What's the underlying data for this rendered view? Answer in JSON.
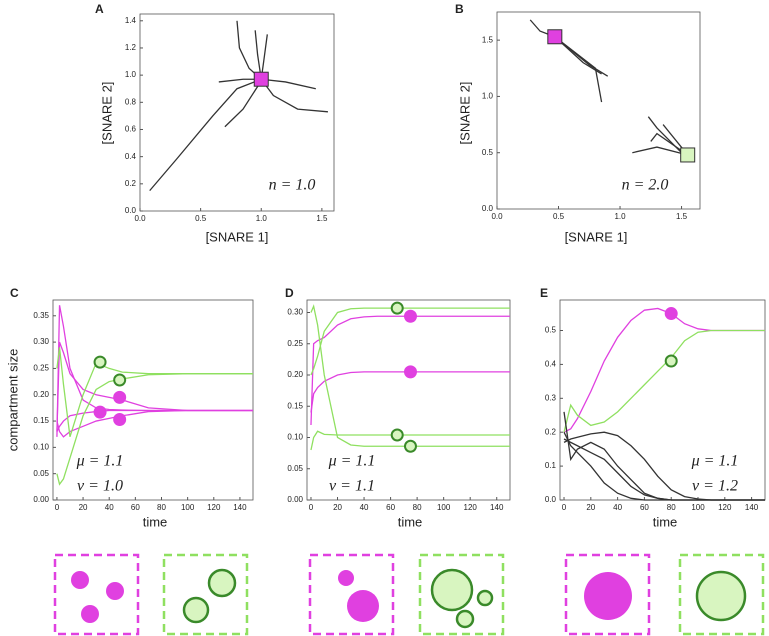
{
  "chart_data": [
    {
      "type": "line",
      "label": "A",
      "xlabel": "[SNARE 1]",
      "ylabel": "[SNARE 2]",
      "annotations": [
        "n = 1.0"
      ],
      "xlim": [
        0,
        1.6
      ],
      "ylim": [
        0,
        1.45
      ],
      "xticks": [
        {
          "value": 0,
          "label": "0.0"
        },
        0.5,
        {
          "value": 1,
          "label": "1.0"
        },
        1.5
      ],
      "yticks": [
        {
          "value": 0,
          "label": "0.0"
        },
        0.2,
        0.4,
        0.6,
        0.8,
        {
          "value": 1,
          "label": "1.0"
        },
        1.2,
        1.4
      ],
      "series": [
        {
          "color": "#333333",
          "x": [
            0.08,
            0.3,
            0.6,
            0.8,
            1.0
          ],
          "values": [
            0.15,
            0.38,
            0.7,
            0.9,
            0.97
          ]
        },
        {
          "color": "#333333",
          "x": [
            0.8,
            0.82,
            0.9,
            1.0
          ],
          "values": [
            1.4,
            1.2,
            1.05,
            0.97
          ]
        },
        {
          "color": "#333333",
          "x": [
            0.95,
            0.97,
            1.0
          ],
          "values": [
            1.33,
            1.15,
            0.97
          ]
        },
        {
          "color": "#333333",
          "x": [
            1.05,
            1.02,
            1.0
          ],
          "values": [
            1.3,
            1.1,
            0.97
          ]
        },
        {
          "color": "#333333",
          "x": [
            1.55,
            1.3,
            1.1,
            1.0
          ],
          "values": [
            0.73,
            0.75,
            0.85,
            0.97
          ]
        },
        {
          "color": "#333333",
          "x": [
            1.45,
            1.2,
            1.0
          ],
          "values": [
            0.9,
            0.95,
            0.97
          ]
        },
        {
          "color": "#333333",
          "x": [
            0.7,
            0.85,
            0.98
          ],
          "values": [
            0.62,
            0.75,
            0.93
          ]
        },
        {
          "color": "#333333",
          "x": [
            0.65,
            0.85,
            1.0
          ],
          "values": [
            0.95,
            0.97,
            0.97
          ]
        }
      ],
      "markers": [
        {
          "shape": "square",
          "fill": "#e040e0",
          "stroke": "#333333",
          "x": [
            1.0
          ],
          "values": [
            0.97
          ]
        }
      ]
    },
    {
      "type": "line",
      "label": "B",
      "xlabel": "[SNARE 1]",
      "ylabel": "[SNARE 2]",
      "annotations": [
        "n = 2.0"
      ],
      "xlim": [
        0,
        1.65
      ],
      "ylim": [
        0,
        1.75
      ],
      "xticks": [
        {
          "value": 0,
          "label": "0.0"
        },
        0.5,
        {
          "value": 1,
          "label": "1.0"
        },
        1.5
      ],
      "yticks": [
        {
          "value": 0,
          "label": "0.0"
        },
        0.5,
        {
          "value": 1,
          "label": "1.0"
        },
        1.5
      ],
      "series": [
        {
          "color": "#333333",
          "x": [
            0.27,
            0.35,
            0.47
          ],
          "values": [
            1.68,
            1.58,
            1.53
          ]
        },
        {
          "color": "#333333",
          "x": [
            0.47,
            0.7,
            0.85
          ],
          "values": [
            1.53,
            1.3,
            1.2
          ]
        },
        {
          "color": "#333333",
          "x": [
            0.47,
            0.8,
            0.85
          ],
          "values": [
            1.53,
            1.25,
            0.95
          ]
        },
        {
          "color": "#333333",
          "x": [
            0.47,
            0.75,
            0.9
          ],
          "values": [
            1.53,
            1.28,
            1.18
          ]
        },
        {
          "color": "#333333",
          "x": [
            1.23,
            1.3,
            1.5
          ],
          "values": [
            0.82,
            0.72,
            0.5
          ]
        },
        {
          "color": "#333333",
          "x": [
            1.25,
            1.3,
            1.55
          ],
          "values": [
            0.6,
            0.67,
            0.48
          ]
        },
        {
          "color": "#333333",
          "x": [
            1.1,
            1.3,
            1.55
          ],
          "values": [
            0.5,
            0.55,
            0.48
          ]
        },
        {
          "color": "#333333",
          "x": [
            1.35,
            1.55
          ],
          "values": [
            0.75,
            0.48
          ]
        }
      ],
      "markers": [
        {
          "shape": "square",
          "fill": "#e040e0",
          "stroke": "#333333",
          "x": [
            0.47
          ],
          "values": [
            1.53
          ]
        },
        {
          "shape": "square",
          "fill": "#d8f5c0",
          "stroke": "#333333",
          "x": [
            1.55
          ],
          "values": [
            0.48
          ]
        }
      ]
    },
    {
      "type": "line",
      "label": "C",
      "xlabel": "time",
      "ylabel": "compartment size",
      "annotations": [
        "μ = 1.1",
        "ν = 1.0"
      ],
      "xlim": [
        -3,
        150
      ],
      "ylim": [
        0,
        0.38
      ],
      "xticks": [
        0,
        20,
        40,
        60,
        80,
        100,
        120,
        140
      ],
      "yticks": [
        {
          "value": 0,
          "label": "0.00"
        },
        0.05,
        {
          "value": 0.1,
          "label": "0.10"
        },
        0.15,
        {
          "value": 0.2,
          "label": "0.20"
        },
        0.25,
        {
          "value": 0.3,
          "label": "0.30"
        },
        0.35
      ],
      "x": [
        0,
        2,
        5,
        10,
        20,
        30,
        40,
        50,
        70,
        100,
        150
      ],
      "series": [
        {
          "color": "#e040e0",
          "values": [
            0.12,
            0.37,
            0.33,
            0.25,
            0.19,
            0.175,
            0.172,
            0.171,
            0.17,
            0.17,
            0.17
          ]
        },
        {
          "color": "#e040e0",
          "values": [
            0.13,
            0.3,
            0.28,
            0.24,
            0.21,
            0.2,
            0.195,
            0.19,
            0.175,
            0.17,
            0.17
          ]
        },
        {
          "color": "#e040e0",
          "values": [
            0.13,
            0.14,
            0.15,
            0.16,
            0.165,
            0.168,
            0.17,
            0.17,
            0.17,
            0.17,
            0.17
          ]
        },
        {
          "color": "#e040e0",
          "values": [
            0.15,
            0.13,
            0.12,
            0.13,
            0.14,
            0.15,
            0.155,
            0.16,
            0.168,
            0.17,
            0.17
          ]
        },
        {
          "color": "#8fe060",
          "values": [
            0.25,
            0.29,
            0.22,
            0.12,
            0.2,
            0.26,
            0.25,
            0.243,
            0.24,
            0.24,
            0.24
          ]
        },
        {
          "color": "#8fe060",
          "values": [
            0.05,
            0.03,
            0.04,
            0.08,
            0.16,
            0.21,
            0.225,
            0.23,
            0.238,
            0.24,
            0.24
          ]
        }
      ],
      "markers": [
        {
          "shape": "circle",
          "fill": "#e040e0",
          "stroke": "#e040e0",
          "x": [
            33,
            48,
            48
          ],
          "values": [
            0.167,
            0.195,
            0.153
          ]
        },
        {
          "shape": "circle",
          "fill": "#d8f5c0",
          "stroke": "#3a8a2a",
          "x": [
            33,
            48
          ],
          "values": [
            0.262,
            0.228
          ]
        }
      ]
    },
    {
      "type": "line",
      "label": "D",
      "xlabel": "time",
      "annotations": [
        "μ = 1.1",
        "ν = 1.1"
      ],
      "xlim": [
        -3,
        150
      ],
      "ylim": [
        0,
        0.32
      ],
      "xticks": [
        0,
        20,
        40,
        60,
        80,
        100,
        120,
        140
      ],
      "yticks": [
        {
          "value": 0,
          "label": "0.00"
        },
        0.05,
        {
          "value": 0.1,
          "label": "0.10"
        },
        0.15,
        {
          "value": 0.2,
          "label": "0.20"
        },
        0.25,
        {
          "value": 0.3,
          "label": "0.30"
        }
      ],
      "x": [
        0,
        2,
        5,
        10,
        20,
        30,
        40,
        50,
        70,
        100,
        150
      ],
      "series": [
        {
          "color": "#e040e0",
          "values": [
            0.12,
            0.25,
            0.255,
            0.26,
            0.28,
            0.29,
            0.293,
            0.294,
            0.294,
            0.294,
            0.294
          ]
        },
        {
          "color": "#e040e0",
          "values": [
            0.14,
            0.17,
            0.18,
            0.19,
            0.2,
            0.204,
            0.205,
            0.205,
            0.205,
            0.205,
            0.205
          ]
        },
        {
          "color": "#8fe060",
          "values": [
            0.2,
            0.21,
            0.23,
            0.27,
            0.3,
            0.306,
            0.307,
            0.307,
            0.307,
            0.307,
            0.307
          ]
        },
        {
          "color": "#8fe060",
          "values": [
            0.3,
            0.31,
            0.28,
            0.2,
            0.1,
            0.088,
            0.086,
            0.086,
            0.086,
            0.086,
            0.086
          ]
        },
        {
          "color": "#8fe060",
          "values": [
            0.08,
            0.1,
            0.11,
            0.105,
            0.104,
            0.104,
            0.104,
            0.104,
            0.104,
            0.104,
            0.104
          ]
        }
      ],
      "markers": [
        {
          "shape": "circle",
          "fill": "#e040e0",
          "stroke": "#e040e0",
          "x": [
            75,
            75
          ],
          "values": [
            0.294,
            0.205
          ]
        },
        {
          "shape": "circle",
          "fill": "#d8f5c0",
          "stroke": "#3a8a2a",
          "x": [
            65,
            75,
            65
          ],
          "values": [
            0.307,
            0.086,
            0.104
          ]
        }
      ]
    },
    {
      "type": "line",
      "label": "E",
      "xlabel": "time",
      "annotations": [
        "μ = 1.1",
        "ν = 1.2"
      ],
      "xlim": [
        -3,
        150
      ],
      "ylim": [
        0,
        0.59
      ],
      "xticks": [
        0,
        20,
        40,
        60,
        80,
        100,
        120,
        140
      ],
      "yticks": [
        {
          "value": 0,
          "label": "0.0"
        },
        0.1,
        0.2,
        0.3,
        0.4,
        0.5
      ],
      "x": [
        0,
        5,
        10,
        20,
        30,
        40,
        50,
        60,
        70,
        80,
        90,
        100,
        110,
        150
      ],
      "series": [
        {
          "color": "#e040e0",
          "values": [
            0.2,
            0.21,
            0.24,
            0.32,
            0.41,
            0.48,
            0.53,
            0.56,
            0.565,
            0.55,
            0.52,
            0.505,
            0.5,
            0.5
          ]
        },
        {
          "color": "#8fe060",
          "values": [
            0.2,
            0.28,
            0.25,
            0.22,
            0.23,
            0.26,
            0.3,
            0.34,
            0.38,
            0.42,
            0.47,
            0.495,
            0.5,
            0.5
          ]
        },
        {
          "color": "#333333",
          "values": [
            0.2,
            0.16,
            0.14,
            0.1,
            0.05,
            0.02,
            0.005,
            0,
            0,
            0,
            0,
            0,
            0,
            0
          ]
        },
        {
          "color": "#333333",
          "values": [
            0.18,
            0.17,
            0.16,
            0.14,
            0.12,
            0.08,
            0.04,
            0.015,
            0.005,
            0,
            0,
            0,
            0,
            0
          ]
        },
        {
          "color": "#333333",
          "values": [
            0.17,
            0.18,
            0.185,
            0.195,
            0.2,
            0.19,
            0.16,
            0.12,
            0.07,
            0.03,
            0.01,
            0.003,
            0,
            0
          ]
        },
        {
          "color": "#333333",
          "values": [
            0.26,
            0.12,
            0.15,
            0.17,
            0.15,
            0.1,
            0.06,
            0.02,
            0.005,
            0,
            0,
            0,
            0,
            0
          ]
        }
      ],
      "markers": [
        {
          "shape": "circle",
          "fill": "#e040e0",
          "stroke": "#e040e0",
          "x": [
            80
          ],
          "values": [
            0.55
          ]
        },
        {
          "shape": "circle",
          "fill": "#d8f5c0",
          "stroke": "#3a8a2a",
          "x": [
            80
          ],
          "values": [
            0.41
          ]
        }
      ]
    }
  ]
}
